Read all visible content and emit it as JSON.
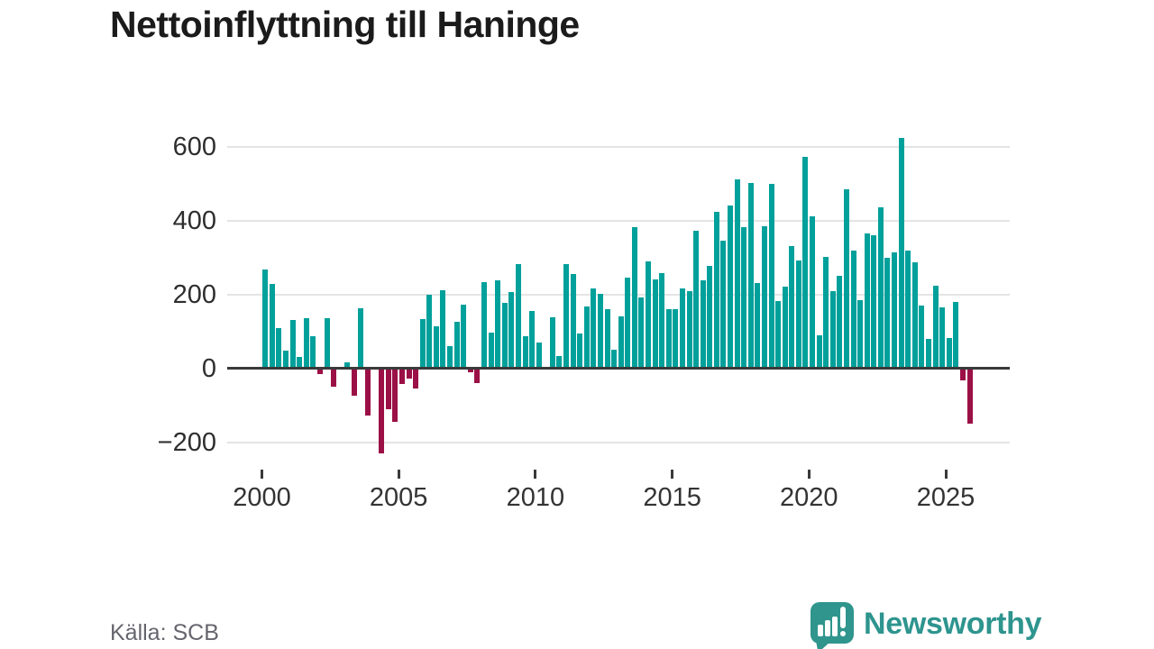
{
  "title": "Nettoinflyttning till Haninge",
  "source": "Källa: SCB",
  "branding": {
    "name": "Newsworthy"
  },
  "colors": {
    "positive": "#00A09B",
    "negative": "#9B1046",
    "axis": "#3a3a3a",
    "grid": "#e4e4e4",
    "title": "#1b1b1b",
    "tick_label": "#333333",
    "source_text": "#65656e",
    "brand": "#2E948E"
  },
  "chart_data": {
    "type": "bar",
    "title": "Nettoinflyttning till Haninge",
    "frequency": "quarterly",
    "x_start": "2000 Q1",
    "x_end": "2025 Q4",
    "x_tick_labels": [
      "2000",
      "2005",
      "2010",
      "2015",
      "2020",
      "2025"
    ],
    "y_ticks": [
      600,
      400,
      200,
      0,
      -200
    ],
    "ylim": [
      -260,
      660
    ],
    "grid": true,
    "legend": "none",
    "series": [
      {
        "name": "Nettoinflyttning",
        "values": [
          266,
          229,
          109,
          48,
          131,
          31,
          136,
          87,
          -15,
          136,
          -50,
          0,
          15,
          -75,
          163,
          -128,
          0,
          -230,
          -112,
          -144,
          -43,
          -27,
          -55,
          132,
          200,
          113,
          211,
          60,
          126,
          171,
          -12,
          -39,
          232,
          97,
          239,
          177,
          207,
          281,
          87,
          156,
          69,
          0,
          138,
          34,
          282,
          256,
          93,
          167,
          216,
          202,
          159,
          49,
          141,
          246,
          382,
          192,
          290,
          241,
          257,
          159,
          161,
          215,
          208,
          372,
          239,
          278,
          423,
          346,
          440,
          512,
          381,
          502,
          230,
          384,
          498,
          182,
          222,
          331,
          292,
          572,
          410,
          90,
          301,
          208,
          249,
          484,
          319,
          184,
          364,
          361,
          435,
          298,
          314,
          623,
          319,
          286,
          170,
          80,
          224,
          164,
          83,
          180,
          -33,
          -151
        ]
      }
    ]
  }
}
